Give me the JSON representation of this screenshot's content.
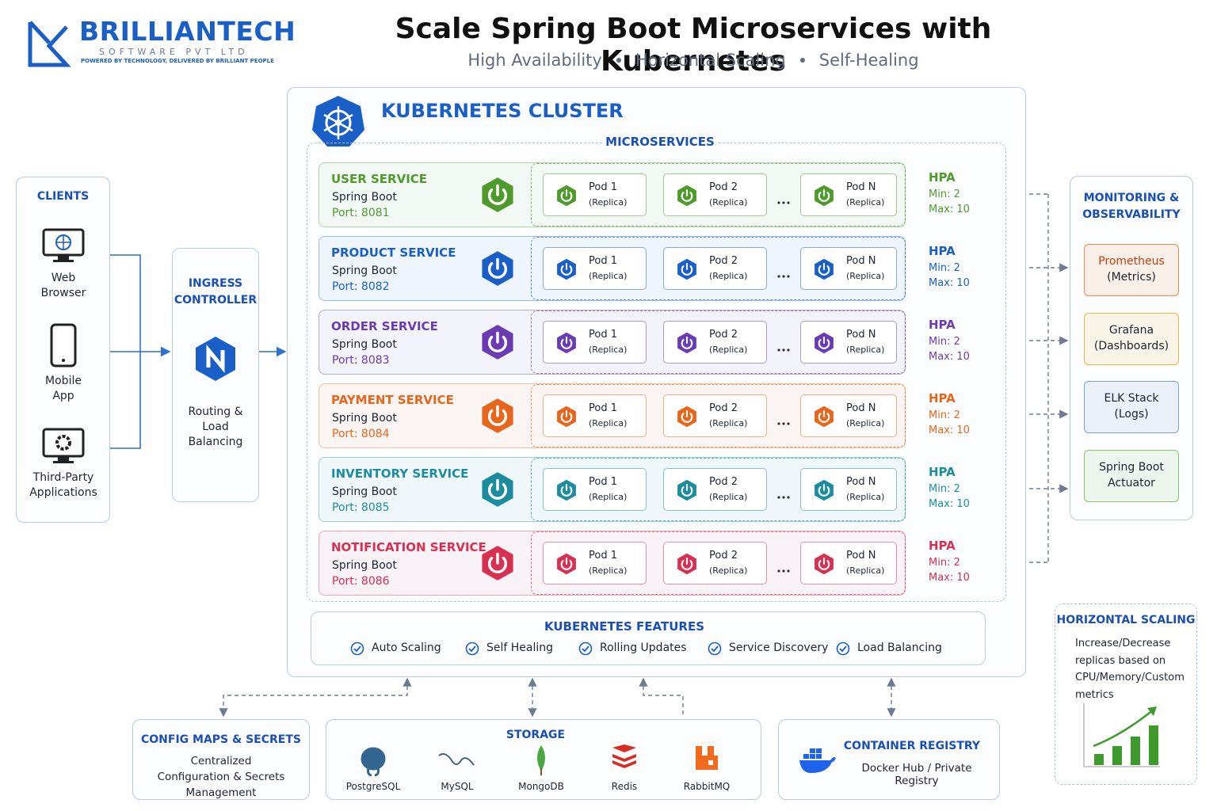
{
  "brand": {
    "name": "BRILLIANTECH",
    "sub": "SOFTWARE PVT LTD",
    "tagline": "POWERED BY TECHNOLOGY, DELIVERED BY BRILLIANT PEOPLE"
  },
  "header": {
    "title": "Scale Spring Boot Microservices with Kubernetes",
    "subtitle": [
      "High Availability",
      "Horizontal Scaling",
      "Self-Healing"
    ]
  },
  "clients": {
    "title": "CLIENTS",
    "items": [
      "Web Browser",
      "Mobile App",
      "Third-Party Applications"
    ]
  },
  "ingress": {
    "title": "INGRESS CONTROLLER",
    "note": "Routing & Load Balancing"
  },
  "cluster": {
    "title": "KUBERNETES CLUSTER",
    "section": "MICROSERVICES",
    "services": [
      {
        "name": "USER SERVICE",
        "tech": "Spring Boot",
        "port": "Port: 8081",
        "color": "#4e9a2a",
        "pods": [
          {
            "name": "Pod 1",
            "note": "(Replica)"
          },
          {
            "name": "Pod 2",
            "note": "(Replica)"
          },
          {
            "name": "Pod N",
            "note": "(Replica)"
          }
        ],
        "hpa": {
          "label": "HPA",
          "min": "Min: 2",
          "max": "Max: 10"
        }
      },
      {
        "name": "PRODUCT SERVICE",
        "tech": "Spring Boot",
        "port": "Port: 8082",
        "color": "#1a5fc8",
        "pods": [
          {
            "name": "Pod 1",
            "note": "(Replica)"
          },
          {
            "name": "Pod 2",
            "note": "(Replica)"
          },
          {
            "name": "Pod N",
            "note": "(Replica)"
          }
        ],
        "hpa": {
          "label": "HPA",
          "min": "Min: 2",
          "max": "Max: 10"
        }
      },
      {
        "name": "ORDER SERVICE",
        "tech": "Spring Boot",
        "port": "Port: 8083",
        "color": "#6a3bb2",
        "pods": [
          {
            "name": "Pod 1",
            "note": "(Replica)"
          },
          {
            "name": "Pod 2",
            "note": "(Replica)"
          },
          {
            "name": "Pod N",
            "note": "(Replica)"
          }
        ],
        "hpa": {
          "label": "HPA",
          "min": "Min: 2",
          "max": "Max: 10"
        }
      },
      {
        "name": "PAYMENT SERVICE",
        "tech": "Spring Boot",
        "port": "Port: 8084",
        "color": "#e8661c",
        "pods": [
          {
            "name": "Pod 1",
            "note": "(Replica)"
          },
          {
            "name": "Pod 2",
            "note": "(Replica)"
          },
          {
            "name": "Pod N",
            "note": "(Replica)"
          }
        ],
        "hpa": {
          "label": "HPA",
          "min": "Min: 2",
          "max": "Max: 10"
        }
      },
      {
        "name": "INVENTORY SERVICE",
        "tech": "Spring Boot",
        "port": "Port: 8085",
        "color": "#1b8d9e",
        "pods": [
          {
            "name": "Pod 1",
            "note": "(Replica)"
          },
          {
            "name": "Pod 2",
            "note": "(Replica)"
          },
          {
            "name": "Pod N",
            "note": "(Replica)"
          }
        ],
        "hpa": {
          "label": "HPA",
          "min": "Min: 2",
          "max": "Max: 10"
        }
      },
      {
        "name": "NOTIFICATION SERVICE",
        "tech": "Spring Boot",
        "port": "Port: 8086",
        "color": "#d92f50",
        "pods": [
          {
            "name": "Pod 1",
            "note": "(Replica)"
          },
          {
            "name": "Pod 2",
            "note": "(Replica)"
          },
          {
            "name": "Pod N",
            "note": "(Replica)"
          }
        ],
        "hpa": {
          "label": "HPA",
          "min": "Min: 2",
          "max": "Max: 10"
        }
      }
    ]
  },
  "features": {
    "title": "KUBERNETES FEATURES",
    "items": [
      "Auto Scaling",
      "Self Healing",
      "Rolling Updates",
      "Service Discovery",
      "Load Balancing"
    ]
  },
  "monitoring": {
    "title": "MONITORING & OBSERVABILITY",
    "items": [
      {
        "name": "Prometheus",
        "note": "(Metrics)",
        "color": "#f08a4b"
      },
      {
        "name": "Grafana",
        "note": "(Dashboards)",
        "color": "#e9b53a"
      },
      {
        "name": "ELK Stack",
        "note": "(Logs)",
        "color": "#7e9fd0"
      },
      {
        "name": "Spring Boot",
        "note": "Actuator",
        "color": "#8cc26a"
      }
    ]
  },
  "scaling": {
    "title": "HORIZONTAL SCALING",
    "text": "Increase/Decrease replicas based on CPU/Memory/Custom metrics"
  },
  "config": {
    "title": "CONFIG MAPS & SECRETS",
    "text": "Centralized Configuration & Secrets Management"
  },
  "storage": {
    "title": "STORAGE",
    "items": [
      "PostgreSQL",
      "MySQL",
      "MongoDB",
      "Redis",
      "RabbitMQ"
    ]
  },
  "registry": {
    "title": "CONTAINER REGISTRY",
    "text": "Docker Hub / Private Registry"
  }
}
